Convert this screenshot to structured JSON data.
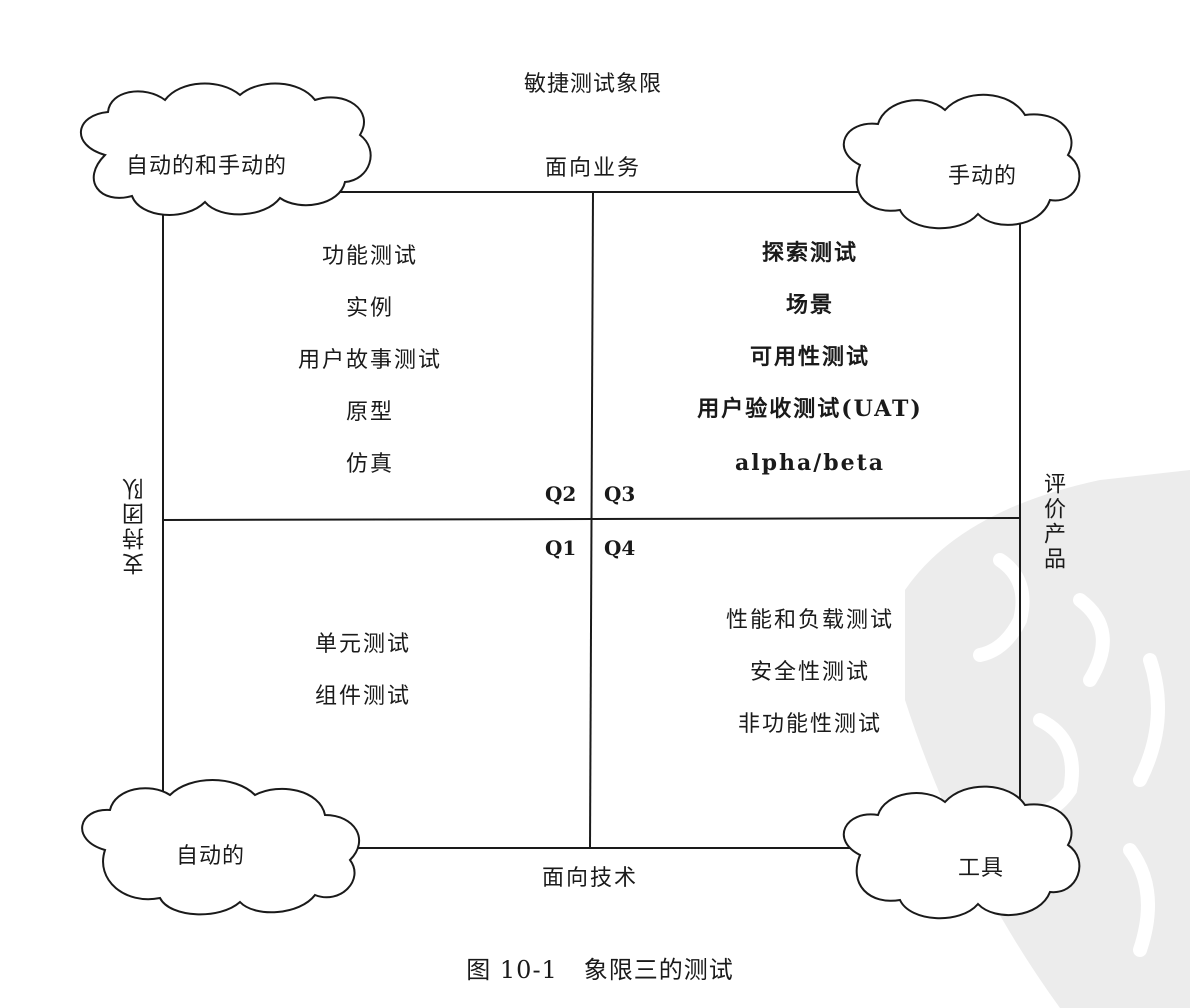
{
  "diagram": {
    "title": "敏捷测试象限",
    "axis_top": "面向业务",
    "axis_bottom": "面向技术",
    "axis_left": "支持团队",
    "axis_right": "评价产品",
    "quadrants": {
      "q2": {
        "label": "Q2",
        "items": [
          "功能测试",
          "实例",
          "用户故事测试",
          "原型",
          "仿真"
        ]
      },
      "q3": {
        "label": "Q3",
        "items": [
          "探索测试",
          "场景",
          "可用性测试",
          "用户验收测试(UAT)",
          "alpha/beta"
        ]
      },
      "q1": {
        "label": "Q1",
        "items": [
          "单元测试",
          "组件测试"
        ]
      },
      "q4": {
        "label": "Q4",
        "items": [
          "性能和负载测试",
          "安全性测试",
          "非功能性测试"
        ]
      }
    },
    "clouds": {
      "top_left": "自动的和手动的",
      "top_right": "手动的",
      "bottom_left": "自动的",
      "bottom_right": "工具"
    },
    "caption": "图 10-1   象限三的测试",
    "colors": {
      "line": "#1a1a1a",
      "watermark": "#e8e8e8"
    }
  }
}
